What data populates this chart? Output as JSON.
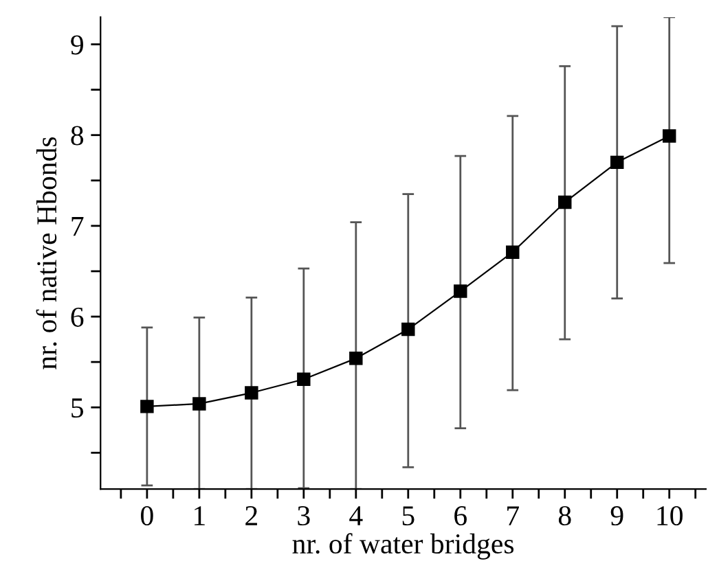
{
  "chart_data": {
    "type": "line",
    "xlabel": "nr. of water bridges",
    "ylabel": "nr. of native Hbonds",
    "x": [
      0,
      1,
      2,
      3,
      4,
      5,
      6,
      7,
      8,
      9,
      10
    ],
    "series": [
      {
        "color": "#000000",
        "values": [
          5.01,
          5.04,
          5.16,
          5.31,
          5.54,
          5.86,
          6.28,
          6.71,
          7.26,
          7.7,
          7.99
        ],
        "errors": [
          [
            4.14,
            5.88
          ],
          [
            4.1,
            5.99
          ],
          [
            4.1,
            6.21
          ],
          [
            4.11,
            6.53
          ],
          [
            4.1,
            7.04
          ],
          [
            4.34,
            7.35
          ],
          [
            4.77,
            7.77
          ],
          [
            5.19,
            8.21
          ],
          [
            5.75,
            8.76
          ],
          [
            6.2,
            9.2
          ],
          [
            6.59,
            9.3
          ]
        ]
      }
    ],
    "marker": "square",
    "line_style": "solid",
    "grid": false,
    "legend": false,
    "xlim": [
      -0.89,
      10.7
    ],
    "ylim": [
      4.1,
      9.3
    ],
    "xticks": [
      {
        "value": -0.5,
        "label": null
      },
      0,
      {
        "value": 0.5,
        "label": null
      },
      1,
      {
        "value": 1.5,
        "label": null
      },
      2,
      {
        "value": 2.5,
        "label": null
      },
      3,
      {
        "value": 3.5,
        "label": null
      },
      4,
      {
        "value": 4.5,
        "label": null
      },
      5,
      {
        "value": 5.5,
        "label": null
      },
      6,
      {
        "value": 6.5,
        "label": null
      },
      7,
      {
        "value": 7.5,
        "label": null
      },
      8,
      {
        "value": 8.5,
        "label": null
      },
      9,
      {
        "value": 9.5,
        "label": null
      },
      10,
      {
        "value": 10.5,
        "label": null
      }
    ],
    "yticks": [
      {
        "value": 4.5,
        "label": null
      },
      5,
      {
        "value": 5.5,
        "label": null
      },
      6,
      {
        "value": 6.5,
        "label": null
      },
      7,
      {
        "value": 7.5,
        "label": null
      },
      8,
      {
        "value": 8.5,
        "label": null
      },
      9
    ]
  }
}
